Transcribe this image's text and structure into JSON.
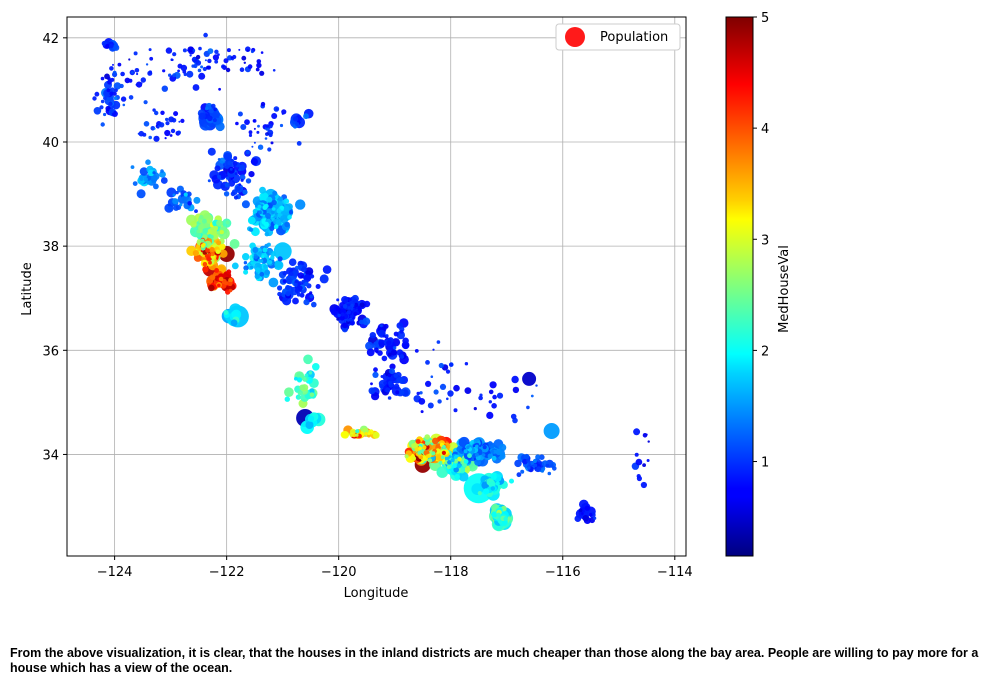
{
  "chart_data": {
    "type": "scatter",
    "title": "",
    "xlabel": "Longitude",
    "ylabel": "Latitude",
    "xlim": [
      -124.85,
      -113.8
    ],
    "ylim": [
      32.05,
      42.4
    ],
    "xticks": [
      -124,
      -122,
      -120,
      -118,
      -116,
      -114
    ],
    "xtick_labels": [
      "−124",
      "−122",
      "−120",
      "−118",
      "−116",
      "−114"
    ],
    "yticks": [
      34,
      36,
      38,
      40,
      42
    ],
    "ytick_labels": [
      "34",
      "36",
      "38",
      "40",
      "42"
    ],
    "grid": true,
    "legend": {
      "position": "upper right",
      "entries": [
        {
          "label": "Population",
          "color": "#ff1a1a"
        }
      ]
    },
    "colorbar": {
      "label": "MedHouseVal",
      "colormap": "jet",
      "range": [
        0.15,
        5.0
      ],
      "ticks": [
        1,
        2,
        3,
        4,
        5
      ],
      "tick_labels": [
        "1",
        "2",
        "3",
        "4",
        "5"
      ]
    },
    "size_encoding": "Population",
    "color_encoding": "MedHouseVal",
    "clusters": [
      {
        "lon": -124.1,
        "lat": 41.85,
        "slon": 0.12,
        "slat": 0.08,
        "count": 12,
        "val": 1.0,
        "sval": 0.3,
        "size": 4
      },
      {
        "lon": -124.1,
        "lat": 40.8,
        "slon": 0.2,
        "slat": 0.35,
        "count": 28,
        "val": 1.0,
        "sval": 0.3,
        "size": 4
      },
      {
        "lon": -123.8,
        "lat": 41.2,
        "slon": 0.5,
        "slat": 0.55,
        "count": 35,
        "val": 0.9,
        "sval": 0.3,
        "size": 2.5
      },
      {
        "lon": -122.6,
        "lat": 41.5,
        "slon": 0.6,
        "slat": 0.45,
        "count": 45,
        "val": 0.9,
        "sval": 0.3,
        "size": 3
      },
      {
        "lon": -121.8,
        "lat": 41.6,
        "slon": 0.5,
        "slat": 0.3,
        "count": 30,
        "val": 0.8,
        "sval": 0.3,
        "size": 2.5
      },
      {
        "lon": -122.3,
        "lat": 40.5,
        "slon": 0.15,
        "slat": 0.25,
        "count": 30,
        "val": 1.1,
        "sval": 0.3,
        "size": 5
      },
      {
        "lon": -123.2,
        "lat": 40.2,
        "slon": 0.45,
        "slat": 0.45,
        "count": 30,
        "val": 0.9,
        "sval": 0.3,
        "size": 2.5
      },
      {
        "lon": -121.3,
        "lat": 40.3,
        "slon": 0.6,
        "slat": 0.5,
        "count": 35,
        "val": 0.9,
        "sval": 0.3,
        "size": 2.5
      },
      {
        "lon": -120.7,
        "lat": 40.4,
        "slon": 0.2,
        "slat": 0.15,
        "count": 10,
        "val": 1.0,
        "sval": 0.3,
        "size": 5
      },
      {
        "lon": -123.4,
        "lat": 39.3,
        "slon": 0.25,
        "slat": 0.25,
        "count": 25,
        "val": 1.4,
        "sval": 0.4,
        "size": 4
      },
      {
        "lon": -122.8,
        "lat": 38.9,
        "slon": 0.25,
        "slat": 0.2,
        "count": 25,
        "val": 1.2,
        "sval": 0.4,
        "size": 4
      },
      {
        "lon": -121.9,
        "lat": 39.4,
        "slon": 0.4,
        "slat": 0.5,
        "count": 60,
        "val": 1.0,
        "sval": 0.3,
        "size": 4
      },
      {
        "lon": -121.2,
        "lat": 38.65,
        "slon": 0.35,
        "slat": 0.35,
        "count": 140,
        "val": 1.6,
        "sval": 0.45,
        "size": 5
      },
      {
        "lon": -122.3,
        "lat": 38.3,
        "slon": 0.3,
        "slat": 0.3,
        "count": 60,
        "val": 2.6,
        "sval": 0.5,
        "size": 5
      },
      {
        "lon": -122.35,
        "lat": 37.85,
        "slon": 0.22,
        "slat": 0.25,
        "count": 70,
        "val": 3.6,
        "sval": 1.1,
        "size": 5
      },
      {
        "lon": -122.1,
        "lat": 37.35,
        "slon": 0.2,
        "slat": 0.2,
        "count": 50,
        "val": 4.3,
        "sval": 0.7,
        "size": 5
      },
      {
        "lon": -121.9,
        "lat": 36.65,
        "slon": 0.15,
        "slat": 0.15,
        "count": 10,
        "val": 1.8,
        "sval": 0.4,
        "size": 6
      },
      {
        "lon": -121.4,
        "lat": 37.7,
        "slon": 0.35,
        "slat": 0.35,
        "count": 60,
        "val": 1.6,
        "sval": 0.4,
        "size": 4
      },
      {
        "lon": -120.7,
        "lat": 37.3,
        "slon": 0.4,
        "slat": 0.35,
        "count": 65,
        "val": 0.95,
        "sval": 0.3,
        "size": 4
      },
      {
        "lon": -119.8,
        "lat": 36.75,
        "slon": 0.3,
        "slat": 0.3,
        "count": 80,
        "val": 0.85,
        "sval": 0.3,
        "size": 4
      },
      {
        "lon": -119.1,
        "lat": 36.15,
        "slon": 0.3,
        "slat": 0.35,
        "count": 50,
        "val": 0.85,
        "sval": 0.3,
        "size": 4
      },
      {
        "lon": -119.1,
        "lat": 35.35,
        "slon": 0.3,
        "slat": 0.25,
        "count": 45,
        "val": 0.9,
        "sval": 0.3,
        "size": 4
      },
      {
        "lon": -120.6,
        "lat": 35.35,
        "slon": 0.25,
        "slat": 0.35,
        "count": 30,
        "val": 2.2,
        "sval": 0.5,
        "size": 4
      },
      {
        "lon": -120.45,
        "lat": 34.65,
        "slon": 0.1,
        "slat": 0.15,
        "count": 8,
        "val": 1.8,
        "sval": 0.3,
        "size": 6
      },
      {
        "lon": -119.6,
        "lat": 34.4,
        "slon": 0.3,
        "slat": 0.08,
        "count": 25,
        "val": 3.4,
        "sval": 1.1,
        "size": 4
      },
      {
        "lon": -118.4,
        "lat": 34.1,
        "slon": 0.35,
        "slat": 0.2,
        "count": 140,
        "val": 3.3,
        "sval": 1.3,
        "size": 5
      },
      {
        "lon": -117.9,
        "lat": 33.85,
        "slon": 0.3,
        "slat": 0.2,
        "count": 80,
        "val": 2.1,
        "sval": 0.8,
        "size": 5
      },
      {
        "lon": -117.5,
        "lat": 34.05,
        "slon": 0.4,
        "slat": 0.2,
        "count": 90,
        "val": 1.4,
        "sval": 0.4,
        "size": 5
      },
      {
        "lon": -117.3,
        "lat": 33.4,
        "slon": 0.25,
        "slat": 0.2,
        "count": 40,
        "val": 1.9,
        "sval": 0.5,
        "size": 6
      },
      {
        "lon": -117.1,
        "lat": 32.8,
        "slon": 0.12,
        "slat": 0.15,
        "count": 60,
        "val": 2.2,
        "sval": 0.5,
        "size": 6
      },
      {
        "lon": -116.5,
        "lat": 33.8,
        "slon": 0.35,
        "slat": 0.2,
        "count": 40,
        "val": 1.1,
        "sval": 0.3,
        "size": 4
      },
      {
        "lon": -115.6,
        "lat": 32.9,
        "slon": 0.15,
        "slat": 0.2,
        "count": 20,
        "val": 0.8,
        "sval": 0.2,
        "size": 4
      },
      {
        "lon": -114.6,
        "lat": 33.9,
        "slon": 0.2,
        "slat": 0.6,
        "count": 12,
        "val": 0.8,
        "sval": 0.2,
        "size": 3
      },
      {
        "lon": -117.0,
        "lat": 35.0,
        "slon": 0.8,
        "slat": 0.5,
        "count": 18,
        "val": 0.9,
        "sval": 0.3,
        "size": 3
      },
      {
        "lon": -118.2,
        "lat": 35.5,
        "slon": 0.6,
        "slat": 0.8,
        "count": 25,
        "val": 0.95,
        "sval": 0.3,
        "size": 3
      }
    ],
    "highlight_points": [
      {
        "lon": -117.5,
        "lat": 33.35,
        "val": 2.0,
        "size": 15
      },
      {
        "lon": -121.8,
        "lat": 36.65,
        "val": 1.7,
        "size": 11
      },
      {
        "lon": -120.6,
        "lat": 34.7,
        "val": 0.4,
        "size": 9
      },
      {
        "lon": -116.6,
        "lat": 35.45,
        "val": 0.5,
        "size": 7
      },
      {
        "lon": -116.2,
        "lat": 34.45,
        "val": 1.5,
        "size": 8
      },
      {
        "lon": -118.5,
        "lat": 33.8,
        "val": 4.9,
        "size": 8
      },
      {
        "lon": -122.0,
        "lat": 37.85,
        "val": 4.9,
        "size": 8
      },
      {
        "lon": -122.3,
        "lat": 37.55,
        "val": 4.7,
        "size": 7
      },
      {
        "lon": -118.3,
        "lat": 34.05,
        "val": 4.9,
        "size": 7
      },
      {
        "lon": -121.3,
        "lat": 38.6,
        "val": 1.8,
        "size": 9
      },
      {
        "lon": -121.0,
        "lat": 37.9,
        "val": 1.7,
        "size": 9
      },
      {
        "lon": -117.7,
        "lat": 34.05,
        "val": 1.8,
        "size": 10
      }
    ]
  },
  "caption": {
    "text": "From the above visualization, it is clear, that the houses in the inland districts are much cheaper than those along the bay area. People are willing to pay more for a house which has a view of the ocean."
  }
}
